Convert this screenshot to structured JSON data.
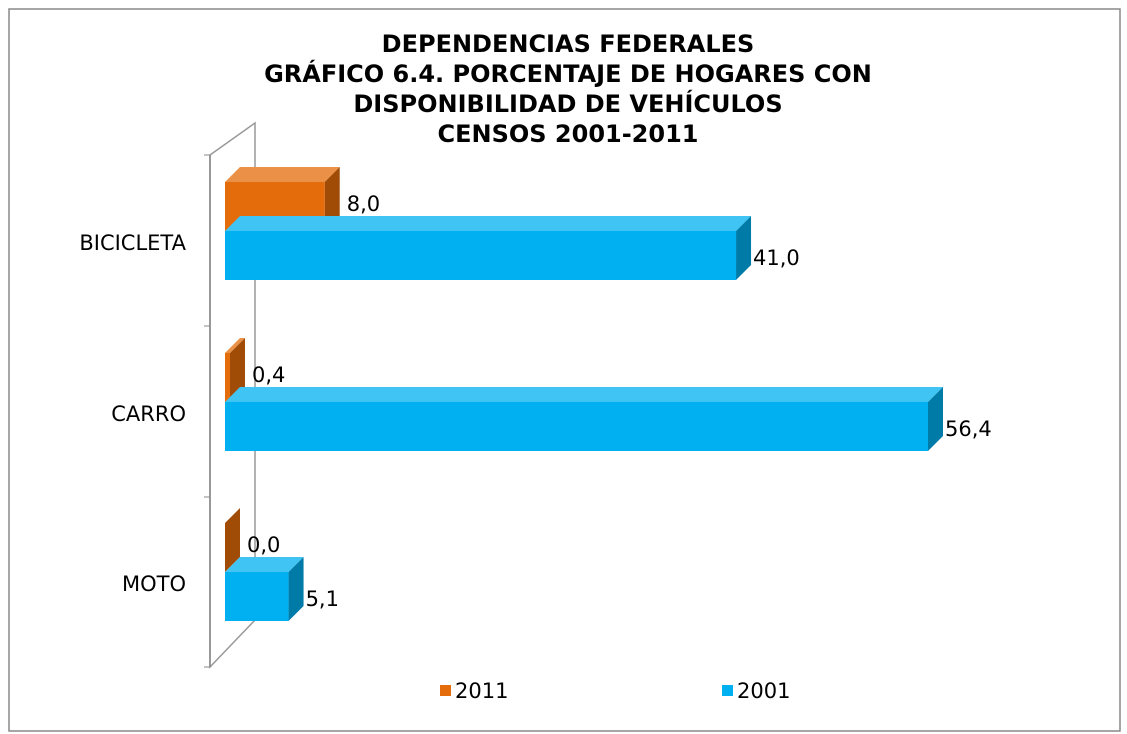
{
  "chart_data": {
    "type": "bar3d_horizontal",
    "title": [
      "DEPENDENCIAS FEDERALES",
      "GRÁFICO 6.4. PORCENTAJE DE HOGARES CON",
      "DISPONIBILIDAD  DE VEHÍCULOS",
      "CENSOS 2001-2011"
    ],
    "categories": [
      "BICICLETA",
      "CARRO",
      "MOTO"
    ],
    "series": [
      {
        "name": "2011",
        "color": "#e46c0a",
        "values": [
          8.0,
          0.4,
          0.0
        ],
        "value_labels": [
          "8,0",
          "0,4",
          "0,0"
        ]
      },
      {
        "name": "2001",
        "color": "#00b0f0",
        "values": [
          41.0,
          56.4,
          5.1
        ],
        "value_labels": [
          "41,0",
          "56,4",
          "5,1"
        ]
      }
    ],
    "legend": "bottom"
  }
}
